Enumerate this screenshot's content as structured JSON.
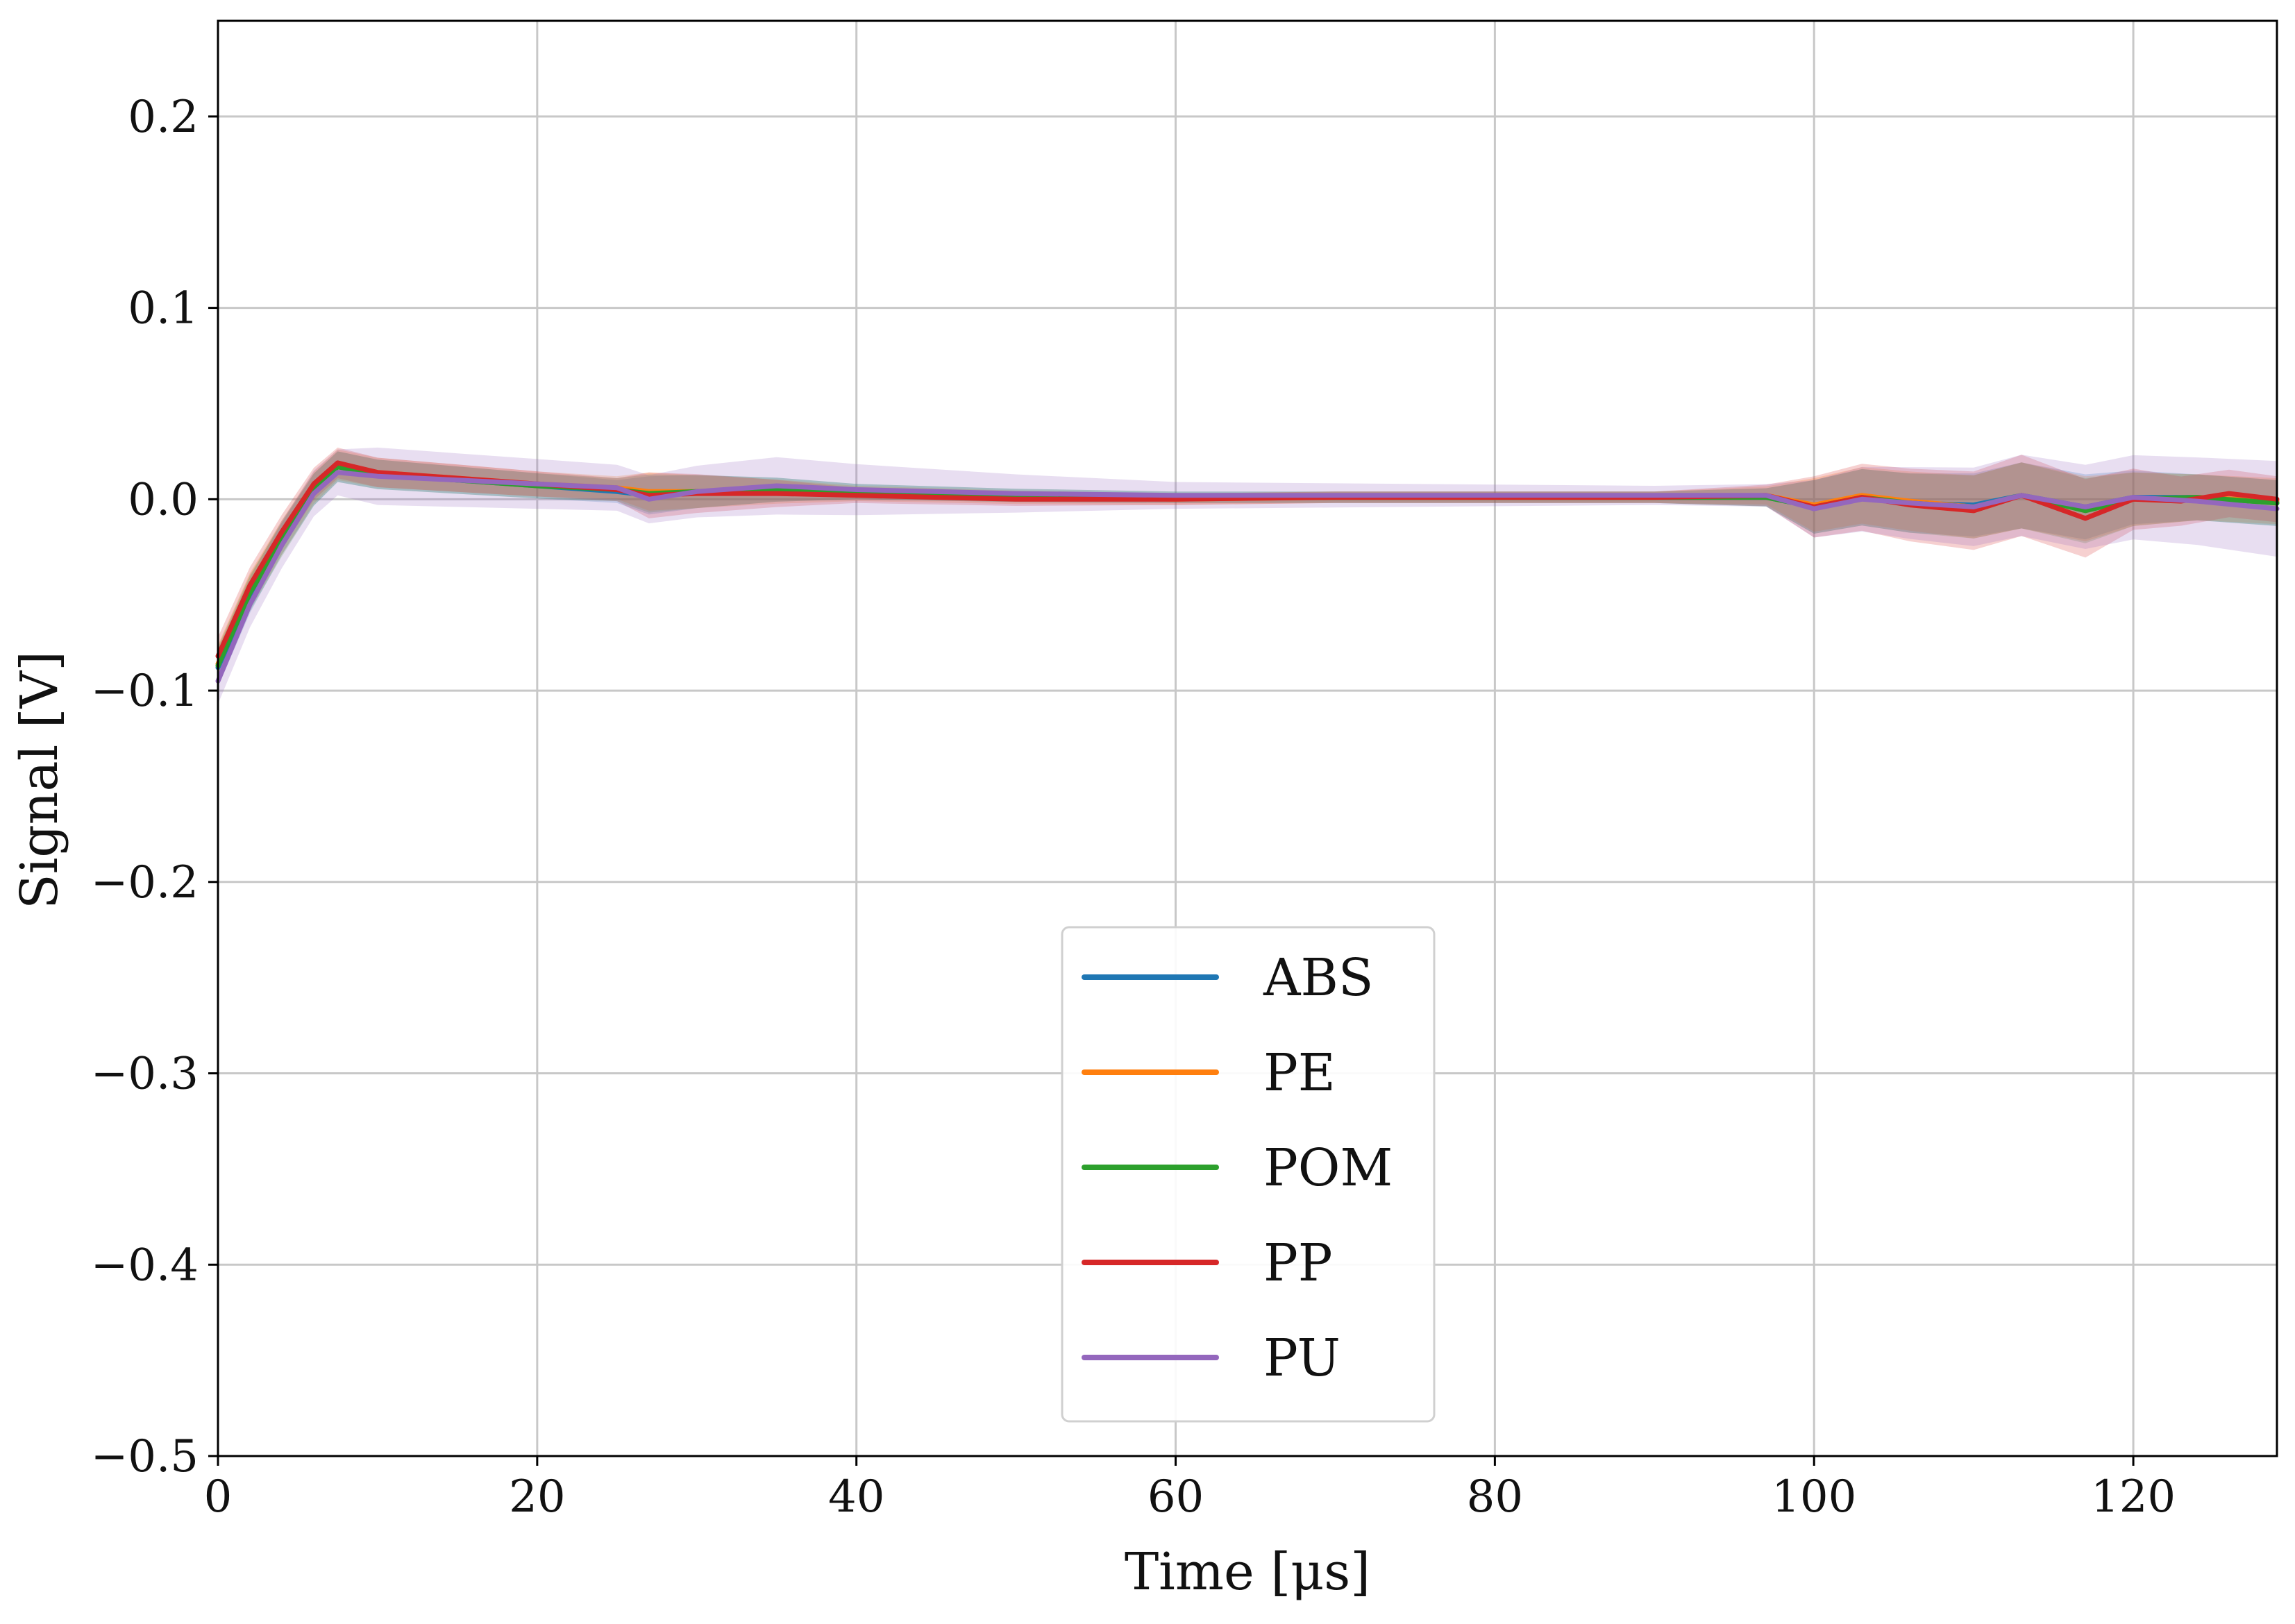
{
  "chart_data": {
    "type": "line",
    "title": "",
    "xlabel": "Time [μs]",
    "ylabel": "Signal [V]",
    "xlim": [
      0,
      129
    ],
    "ylim": [
      -0.5,
      0.25
    ],
    "grid": true,
    "legend_position": "bottom-center",
    "x_ticks": [
      0,
      20,
      40,
      60,
      80,
      100,
      120
    ],
    "x_tick_labels": [
      "0",
      "20",
      "40",
      "60",
      "80",
      "100",
      "120"
    ],
    "y_ticks": [
      0.2,
      0.1,
      0.0,
      -0.1,
      -0.2,
      -0.3,
      -0.4,
      -0.5
    ],
    "y_tick_labels": [
      "0.2",
      "0.1",
      "0.0",
      "−0.1",
      "−0.2",
      "−0.3",
      "−0.4",
      "−0.5"
    ],
    "series": [
      {
        "name": "ABS",
        "color": "#1f77b4",
        "points": [
          [
            0,
            -0.088
          ],
          [
            2,
            -0.05
          ],
          [
            4,
            -0.02
          ],
          [
            6,
            0.005
          ],
          [
            7.5,
            0.017
          ],
          [
            10,
            0.013
          ],
          [
            15,
            0.01
          ],
          [
            20,
            0.007
          ],
          [
            25,
            0.004
          ],
          [
            27,
            0.002
          ],
          [
            30,
            0.004
          ],
          [
            35,
            0.005
          ],
          [
            40,
            0.004
          ],
          [
            50,
            0.002
          ],
          [
            60,
            0.001
          ],
          [
            70,
            0.001
          ],
          [
            80,
            0.001
          ],
          [
            90,
            0.001
          ],
          [
            97,
            0.001
          ],
          [
            100,
            -0.004
          ],
          [
            103,
            0.001
          ],
          [
            106,
            -0.002
          ],
          [
            110,
            -0.003
          ],
          [
            113,
            0.002
          ],
          [
            117,
            -0.004
          ],
          [
            120,
            0.001
          ],
          [
            124,
            0.001
          ],
          [
            129,
            -0.002
          ]
        ],
        "band_halfwidth": [
          [
            0,
            0.01
          ],
          [
            7.5,
            0.008
          ],
          [
            25,
            0.006
          ],
          [
            27,
            0.01
          ],
          [
            40,
            0.004
          ],
          [
            60,
            0.003
          ],
          [
            90,
            0.003
          ],
          [
            98,
            0.005
          ],
          [
            100,
            0.014
          ],
          [
            108,
            0.016
          ],
          [
            116,
            0.018
          ],
          [
            122,
            0.012
          ],
          [
            129,
            0.012
          ]
        ]
      },
      {
        "name": "PE",
        "color": "#ff7f0e",
        "points": [
          [
            0,
            -0.086
          ],
          [
            2,
            -0.048
          ],
          [
            4,
            -0.02
          ],
          [
            6,
            0.006
          ],
          [
            7.5,
            0.018
          ],
          [
            10,
            0.014
          ],
          [
            15,
            0.011
          ],
          [
            20,
            0.008
          ],
          [
            25,
            0.006
          ],
          [
            27,
            0.004
          ],
          [
            30,
            0.004
          ],
          [
            35,
            0.004
          ],
          [
            40,
            0.003
          ],
          [
            50,
            0.001
          ],
          [
            60,
            0.0
          ],
          [
            70,
            0.001
          ],
          [
            80,
            0.001
          ],
          [
            90,
            0.001
          ],
          [
            97,
            0.002
          ],
          [
            100,
            -0.003
          ],
          [
            103,
            0.002
          ],
          [
            106,
            -0.001
          ],
          [
            110,
            -0.004
          ],
          [
            113,
            0.002
          ],
          [
            117,
            -0.005
          ],
          [
            120,
            0.0
          ],
          [
            124,
            0.001
          ],
          [
            129,
            -0.001
          ]
        ],
        "band_halfwidth": [
          [
            0,
            0.01
          ],
          [
            7.5,
            0.008
          ],
          [
            25,
            0.006
          ],
          [
            27,
            0.01
          ],
          [
            40,
            0.004
          ],
          [
            60,
            0.003
          ],
          [
            90,
            0.003
          ],
          [
            98,
            0.005
          ],
          [
            100,
            0.014
          ],
          [
            108,
            0.016
          ],
          [
            116,
            0.018
          ],
          [
            122,
            0.012
          ],
          [
            129,
            0.012
          ]
        ]
      },
      {
        "name": "POM",
        "color": "#2ca02c",
        "points": [
          [
            0,
            -0.087
          ],
          [
            2,
            -0.049
          ],
          [
            4,
            -0.021
          ],
          [
            6,
            0.005
          ],
          [
            7.5,
            0.017
          ],
          [
            10,
            0.013
          ],
          [
            15,
            0.01
          ],
          [
            20,
            0.007
          ],
          [
            25,
            0.005
          ],
          [
            27,
            0.003
          ],
          [
            30,
            0.004
          ],
          [
            35,
            0.005
          ],
          [
            40,
            0.004
          ],
          [
            50,
            0.002
          ],
          [
            60,
            0.001
          ],
          [
            70,
            0.001
          ],
          [
            80,
            0.001
          ],
          [
            90,
            0.001
          ],
          [
            97,
            0.001
          ],
          [
            100,
            -0.004
          ],
          [
            103,
            0.001
          ],
          [
            106,
            -0.002
          ],
          [
            110,
            -0.004
          ],
          [
            113,
            0.002
          ],
          [
            117,
            -0.006
          ],
          [
            120,
            0.0
          ],
          [
            124,
            0.001
          ],
          [
            129,
            -0.002
          ]
        ],
        "band_halfwidth": [
          [
            0,
            0.01
          ],
          [
            7.5,
            0.008
          ],
          [
            25,
            0.006
          ],
          [
            27,
            0.01
          ],
          [
            40,
            0.004
          ],
          [
            60,
            0.003
          ],
          [
            90,
            0.003
          ],
          [
            98,
            0.005
          ],
          [
            100,
            0.014
          ],
          [
            108,
            0.016
          ],
          [
            116,
            0.018
          ],
          [
            122,
            0.012
          ],
          [
            129,
            0.012
          ]
        ]
      },
      {
        "name": "PP",
        "color": "#d62728",
        "points": [
          [
            0,
            -0.082
          ],
          [
            2,
            -0.045
          ],
          [
            4,
            -0.017
          ],
          [
            6,
            0.008
          ],
          [
            7.5,
            0.019
          ],
          [
            10,
            0.014
          ],
          [
            15,
            0.011
          ],
          [
            20,
            0.008
          ],
          [
            25,
            0.005
          ],
          [
            27,
            0.002
          ],
          [
            30,
            0.003
          ],
          [
            35,
            0.003
          ],
          [
            40,
            0.002
          ],
          [
            50,
            0.0
          ],
          [
            60,
            0.0
          ],
          [
            70,
            0.001
          ],
          [
            80,
            0.001
          ],
          [
            90,
            0.001
          ],
          [
            97,
            0.002
          ],
          [
            100,
            -0.004
          ],
          [
            103,
            0.001
          ],
          [
            106,
            -0.003
          ],
          [
            110,
            -0.006
          ],
          [
            113,
            0.002
          ],
          [
            117,
            -0.01
          ],
          [
            120,
            0.0
          ],
          [
            123,
            -0.001
          ],
          [
            126,
            0.003
          ],
          [
            129,
            0.0
          ]
        ],
        "band_halfwidth": [
          [
            0,
            0.01
          ],
          [
            7.5,
            0.008
          ],
          [
            25,
            0.006
          ],
          [
            27,
            0.012
          ],
          [
            40,
            0.004
          ],
          [
            60,
            0.003
          ],
          [
            90,
            0.003
          ],
          [
            98,
            0.006
          ],
          [
            100,
            0.016
          ],
          [
            108,
            0.02
          ],
          [
            116,
            0.022
          ],
          [
            122,
            0.013
          ],
          [
            129,
            0.012
          ]
        ]
      },
      {
        "name": "PU",
        "color": "#9467bd",
        "points": [
          [
            0,
            -0.095
          ],
          [
            2,
            -0.055
          ],
          [
            4,
            -0.024
          ],
          [
            6,
            0.003
          ],
          [
            7.5,
            0.014
          ],
          [
            10,
            0.012
          ],
          [
            15,
            0.01
          ],
          [
            20,
            0.008
          ],
          [
            25,
            0.006
          ],
          [
            27,
            0.0
          ],
          [
            30,
            0.004
          ],
          [
            35,
            0.007
          ],
          [
            40,
            0.005
          ],
          [
            50,
            0.003
          ],
          [
            60,
            0.002
          ],
          [
            70,
            0.002
          ],
          [
            80,
            0.002
          ],
          [
            90,
            0.002
          ],
          [
            97,
            0.002
          ],
          [
            100,
            -0.005
          ],
          [
            103,
            0.0
          ],
          [
            106,
            -0.002
          ],
          [
            110,
            -0.004
          ],
          [
            113,
            0.002
          ],
          [
            117,
            -0.004
          ],
          [
            120,
            0.001
          ],
          [
            124,
            -0.001
          ],
          [
            129,
            -0.005
          ]
        ],
        "band_halfwidth": [
          [
            0,
            0.012
          ],
          [
            7.5,
            0.012
          ],
          [
            10,
            0.015
          ],
          [
            25,
            0.012
          ],
          [
            35,
            0.015
          ],
          [
            50,
            0.01
          ],
          [
            60,
            0.007
          ],
          [
            90,
            0.005
          ],
          [
            98,
            0.006
          ],
          [
            100,
            0.015
          ],
          [
            108,
            0.02
          ],
          [
            116,
            0.022
          ],
          [
            122,
            0.022
          ],
          [
            129,
            0.025
          ]
        ]
      }
    ]
  }
}
